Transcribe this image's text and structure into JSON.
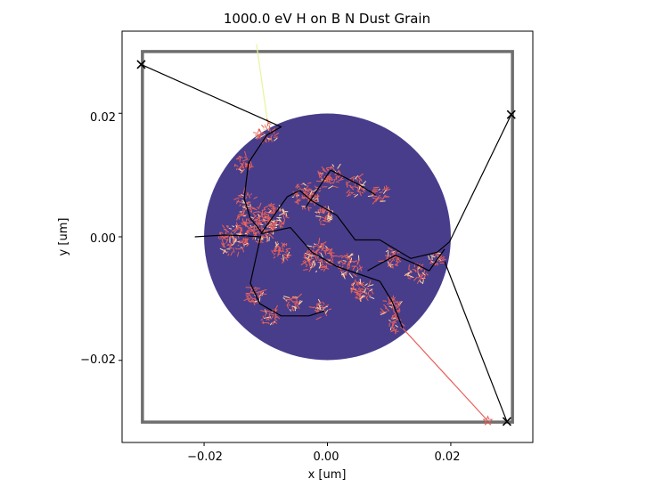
{
  "chart_data": {
    "type": "scatter",
    "title": "1000.0 eV H on B N Dust Grain",
    "xlabel": "x [um]",
    "ylabel": "y [um]",
    "xlim": [
      -0.0333,
      0.0333
    ],
    "ylim": [
      -0.0333,
      0.0333
    ],
    "xticks": [
      -0.02,
      0.0,
      0.02
    ],
    "yticks": [
      -0.02,
      0.0,
      0.02
    ],
    "xtick_labels": [
      "−0.02",
      "0.00",
      "0.02"
    ],
    "ytick_labels": [
      "−0.02",
      "0.00",
      "0.02"
    ],
    "grid": false,
    "colors": {
      "grain": "#483d8b",
      "box": "#6e6e6e",
      "cascade": "#e8605a",
      "cascade_light": "#fcd9a8",
      "track": "#000000",
      "incoming": "#e6f598",
      "outgoing": "#e8605a",
      "marker": "#000000"
    },
    "grain": {
      "center": [
        0.0,
        0.0
      ],
      "radius": 0.02
    },
    "box": {
      "x": [
        -0.03,
        0.03
      ],
      "y": [
        -0.03,
        0.03
      ]
    },
    "incoming_track": [
      [
        -0.0115,
        0.0312
      ],
      [
        -0.0097,
        0.0185
      ]
    ],
    "exit_track": [
      [
        0.0122,
        -0.0148
      ],
      [
        0.026,
        -0.0298
      ]
    ],
    "markers": [
      {
        "shape": "x",
        "point": [
          -0.0302,
          0.0279
        ]
      },
      {
        "shape": "x",
        "point": [
          0.0298,
          0.0198
        ]
      },
      {
        "shape": "x",
        "point": [
          0.0291,
          -0.0299
        ]
      },
      {
        "shape": "star",
        "point": [
          0.026,
          -0.0298
        ]
      }
    ],
    "tracks": [
      [
        [
          -0.0302,
          0.0279
        ],
        [
          -0.0075,
          0.0178
        ],
        [
          -0.0098,
          0.0165
        ],
        [
          -0.0128,
          0.012
        ],
        [
          -0.0135,
          0.0062
        ],
        [
          -0.0125,
          0.003
        ],
        [
          -0.0105,
          0.0005
        ]
      ],
      [
        [
          -0.0215,
          0.0
        ],
        [
          -0.0165,
          0.0003
        ],
        [
          -0.014,
          0.0002
        ],
        [
          -0.0108,
          0.0
        ]
      ],
      [
        [
          -0.0108,
          0.0005
        ],
        [
          -0.0065,
          0.0065
        ],
        [
          -0.0045,
          0.0075
        ],
        [
          -0.0025,
          0.0058
        ]
      ],
      [
        [
          -0.0108,
          0.0005
        ],
        [
          -0.006,
          0.0015
        ],
        [
          -0.0025,
          -0.0025
        ],
        [
          0.0015,
          -0.0048
        ],
        [
          0.005,
          -0.006
        ],
        [
          0.0085,
          -0.0072
        ]
      ],
      [
        [
          -0.0108,
          0.0002
        ],
        [
          -0.0125,
          -0.0075
        ],
        [
          -0.011,
          -0.0108
        ],
        [
          -0.0075,
          -0.0128
        ],
        [
          -0.003,
          -0.0128
        ],
        [
          -0.0005,
          -0.012
        ]
      ],
      [
        [
          -0.0035,
          0.0048
        ],
        [
          0.0005,
          0.0108
        ],
        [
          0.005,
          0.0085
        ],
        [
          0.0078,
          0.0068
        ]
      ],
      [
        [
          -0.0025,
          0.0058
        ],
        [
          0.0015,
          0.0035
        ],
        [
          0.0045,
          -0.0005
        ],
        [
          0.0085,
          -0.0005
        ]
      ],
      [
        [
          0.0065,
          -0.0055
        ],
        [
          0.011,
          -0.003
        ],
        [
          0.0145,
          -0.0045
        ],
        [
          0.0165,
          -0.0055
        ]
      ],
      [
        [
          0.0085,
          -0.0072
        ],
        [
          0.0105,
          -0.0105
        ],
        [
          0.0122,
          -0.0148
        ]
      ],
      [
        [
          0.0085,
          -0.0005
        ],
        [
          0.0135,
          -0.0035
        ],
        [
          0.0178,
          -0.0025
        ],
        [
          0.0198,
          -0.0008
        ],
        [
          0.0298,
          0.0198
        ]
      ],
      [
        [
          0.0165,
          -0.0055
        ],
        [
          0.019,
          -0.002
        ]
      ],
      [
        [
          0.019,
          -0.004
        ],
        [
          0.0291,
          -0.0299
        ]
      ]
    ],
    "cascades": [
      {
        "center": [
          -0.0095,
          0.0168
        ],
        "spread": 0.0018,
        "count": 40
      },
      {
        "center": [
          -0.0138,
          0.0118
        ],
        "spread": 0.0014,
        "count": 30
      },
      {
        "center": [
          -0.0132,
          0.0058
        ],
        "spread": 0.0014,
        "count": 25
      },
      {
        "center": [
          -0.0118,
          0.0018
        ],
        "spread": 0.0032,
        "count": 160
      },
      {
        "center": [
          -0.0155,
          -0.0005
        ],
        "spread": 0.0024,
        "count": 80
      },
      {
        "center": [
          -0.0085,
          0.0035
        ],
        "spread": 0.0022,
        "count": 70
      },
      {
        "center": [
          -0.0035,
          0.0068
        ],
        "spread": 0.0022,
        "count": 70
      },
      {
        "center": [
          0.0005,
          0.0098
        ],
        "spread": 0.0018,
        "count": 50
      },
      {
        "center": [
          0.0045,
          0.0082
        ],
        "spread": 0.0016,
        "count": 40
      },
      {
        "center": [
          0.0085,
          0.0068
        ],
        "spread": 0.0014,
        "count": 30
      },
      {
        "center": [
          -0.0005,
          0.0035
        ],
        "spread": 0.0016,
        "count": 40
      },
      {
        "center": [
          -0.0075,
          -0.0025
        ],
        "spread": 0.0016,
        "count": 40
      },
      {
        "center": [
          -0.0015,
          -0.0035
        ],
        "spread": 0.0025,
        "count": 100
      },
      {
        "center": [
          0.0035,
          -0.0045
        ],
        "spread": 0.0018,
        "count": 50
      },
      {
        "center": [
          0.0055,
          -0.0085
        ],
        "spread": 0.0018,
        "count": 60
      },
      {
        "center": [
          0.0105,
          -0.0035
        ],
        "spread": 0.0015,
        "count": 35
      },
      {
        "center": [
          0.0145,
          -0.0058
        ],
        "spread": 0.0016,
        "count": 40
      },
      {
        "center": [
          0.0175,
          -0.0035
        ],
        "spread": 0.0012,
        "count": 25
      },
      {
        "center": [
          -0.0118,
          -0.0095
        ],
        "spread": 0.0015,
        "count": 40
      },
      {
        "center": [
          -0.0095,
          -0.0128
        ],
        "spread": 0.0014,
        "count": 35
      },
      {
        "center": [
          -0.0055,
          -0.0108
        ],
        "spread": 0.0012,
        "count": 30
      },
      {
        "center": [
          -0.001,
          -0.0118
        ],
        "spread": 0.0012,
        "count": 30
      },
      {
        "center": [
          0.0105,
          -0.0115
        ],
        "spread": 0.0015,
        "count": 35
      },
      {
        "center": [
          0.011,
          -0.0142
        ],
        "spread": 0.0012,
        "count": 25
      }
    ]
  }
}
